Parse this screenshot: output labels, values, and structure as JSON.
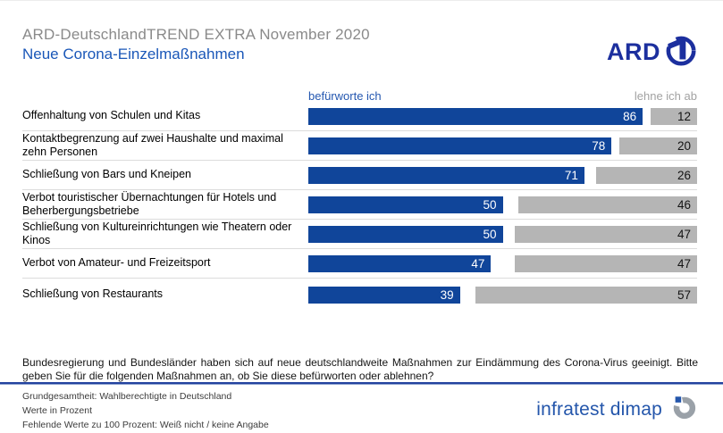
{
  "header": {
    "title": "ARD-DeutschlandTREND EXTRA November 2020",
    "subtitle": "Neue Corona-Einzelmaßnahmen",
    "ard_logo_text": "ARD",
    "ard_logo_digit": "1"
  },
  "chart_data": {
    "type": "bar",
    "orientation": "horizontal",
    "title": "Neue Corona-Einzelmaßnahmen",
    "xlim": [
      0,
      100
    ],
    "unit": "percent",
    "value_labels": "inside-end",
    "legend": [
      {
        "label": "befürworte ich",
        "color": "#10459a"
      },
      {
        "label": "lehne ich ab",
        "color": "#b5b5b5"
      }
    ],
    "categories": [
      "Offenhaltung von Schulen und Kitas",
      "Kontaktbegrenzung auf zwei Haushalte und maximal zehn Personen",
      "Schließung von Bars und Kneipen",
      "Verbot touristischer Übernachtungen für Hotels und Beherbergungsbetriebe",
      "Schließung von Kultureinrichtungen wie Theatern oder Kinos",
      "Verbot von Amateur- und Freizeitsport",
      "Schließung von Restaurants"
    ],
    "series": [
      {
        "name": "befürworte ich",
        "values": [
          86,
          78,
          71,
          50,
          50,
          47,
          39
        ]
      },
      {
        "name": "lehne ich ab",
        "values": [
          12,
          20,
          26,
          46,
          47,
          47,
          57
        ]
      }
    ]
  },
  "footer": {
    "question": "Bundesregierung und Bundesländer haben sich auf neue deutschlandweite Maßnahmen zur Eindämmung des Corona-Virus geeinigt. Bitte geben Sie für die folgenden Maßnahmen an, ob Sie diese befürworten oder ablehnen?",
    "notes": [
      "Grundgesamtheit: Wahlberechtigte in Deutschland",
      "Werte in Prozent",
      "Fehlende Werte zu 100 Prozent: Weiß nicht / keine Angabe"
    ],
    "source_logo_text": "infratest dimap"
  },
  "colors": {
    "approve_bar": "#10459a",
    "reject_bar": "#b5b5b5",
    "title_gray": "#8a8a8a",
    "subtitle_blue": "#1a57b8",
    "ard_logo_blue": "#1c2f9e",
    "infratest_blue": "#2456ab",
    "separator_gray": "#dcdcdc",
    "rule_blue": "#23429f"
  }
}
